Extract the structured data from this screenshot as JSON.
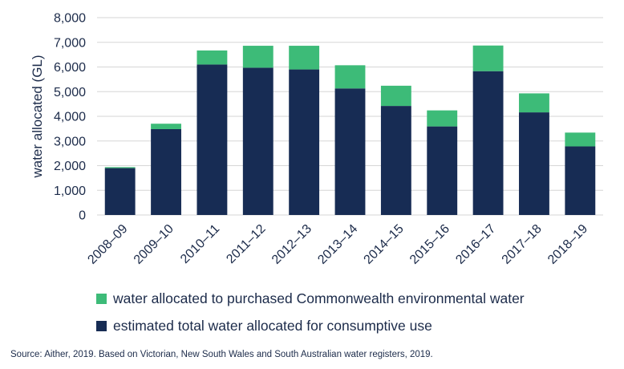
{
  "chart_data": {
    "type": "bar",
    "stacked": true,
    "categories": [
      "2008–09",
      "2009–10",
      "2010–11",
      "2011–12",
      "2012–13",
      "2013–14",
      "2014–15",
      "2015–16",
      "2016–17",
      "2017–18",
      "2018–19"
    ],
    "series": [
      {
        "name": "estimated total water allocated for consumptive use",
        "color": "#172c54",
        "values": [
          1900,
          3480,
          6100,
          5970,
          5900,
          5130,
          4420,
          3590,
          5830,
          4160,
          2780
        ]
      },
      {
        "name": "water allocated to purchased Commonwealth environmental water",
        "color": "#3dbb78",
        "values": [
          40,
          220,
          570,
          890,
          960,
          940,
          820,
          650,
          1040,
          770,
          560
        ]
      }
    ],
    "legend_order": [
      1,
      0
    ],
    "ylabel": "water allocated (GL)",
    "ylim": [
      0,
      8000
    ],
    "yticks": [
      "0",
      "1,000",
      "2,000",
      "3,000",
      "4,000",
      "5,000",
      "6,000",
      "7,000",
      "8,000"
    ],
    "ytick_values": [
      0,
      1000,
      2000,
      3000,
      4000,
      5000,
      6000,
      7000,
      8000
    ],
    "grid": true,
    "legend_position": "bottom"
  },
  "source": "Source: Aither, 2019. Based on Victorian, New South Wales and South Australian water registers, 2019.",
  "colors": {
    "grid": "#d6d6d6",
    "text": "#1c2b4a"
  }
}
